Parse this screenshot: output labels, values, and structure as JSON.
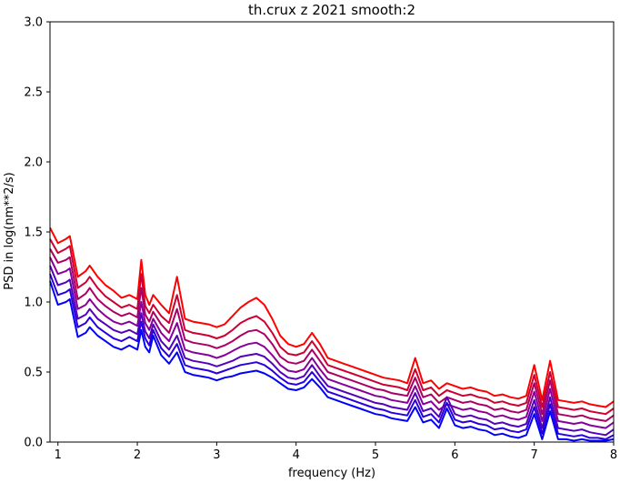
{
  "chart_data": {
    "type": "line",
    "title": "th.crux z 2021 smooth:2",
    "xlabel": "frequency (Hz)",
    "ylabel": "PSD in log(nm**2/s)",
    "xlim": [
      0.9,
      8.0
    ],
    "ylim": [
      0.0,
      3.0
    ],
    "xticks": [
      1,
      2,
      3,
      4,
      5,
      6,
      7,
      8
    ],
    "xtick_labels": [
      "1",
      "2",
      "3",
      "4",
      "5",
      "6",
      "7",
      "8"
    ],
    "yticks": [
      0.0,
      0.5,
      1.0,
      1.5,
      2.0,
      2.5,
      3.0
    ],
    "ytick_labels": [
      "0.0",
      "0.5",
      "1.0",
      "1.5",
      "2.0",
      "2.5",
      "3.0"
    ],
    "grid": false,
    "legend": "none",
    "series": [
      {
        "color": "#ff0000",
        "x": [
          0.9,
          1.0,
          1.1,
          1.15,
          1.25,
          1.35,
          1.4,
          1.5,
          1.6,
          1.7,
          1.8,
          1.9,
          2.0,
          2.05,
          2.1,
          2.15,
          2.2,
          2.3,
          2.4,
          2.5,
          2.6,
          2.7,
          2.8,
          2.9,
          3.0,
          3.1,
          3.2,
          3.3,
          3.4,
          3.5,
          3.6,
          3.7,
          3.8,
          3.9,
          4.0,
          4.1,
          4.2,
          4.3,
          4.4,
          4.5,
          4.6,
          4.7,
          4.8,
          4.9,
          5.0,
          5.1,
          5.2,
          5.3,
          5.4,
          5.5,
          5.6,
          5.7,
          5.8,
          5.9,
          6.0,
          6.1,
          6.2,
          6.3,
          6.4,
          6.5,
          6.6,
          6.7,
          6.8,
          6.9,
          7.0,
          7.1,
          7.2,
          7.3,
          7.4,
          7.5,
          7.6,
          7.7,
          7.8,
          7.9,
          8.0
        ],
        "y": [
          1.53,
          1.42,
          1.45,
          1.47,
          1.18,
          1.22,
          1.26,
          1.18,
          1.12,
          1.08,
          1.03,
          1.05,
          1.02,
          1.3,
          1.05,
          0.98,
          1.05,
          0.98,
          0.92,
          1.18,
          0.88,
          0.86,
          0.85,
          0.84,
          0.82,
          0.84,
          0.9,
          0.96,
          1.0,
          1.03,
          0.98,
          0.88,
          0.76,
          0.7,
          0.68,
          0.7,
          0.78,
          0.7,
          0.6,
          0.58,
          0.56,
          0.54,
          0.52,
          0.5,
          0.48,
          0.46,
          0.45,
          0.44,
          0.42,
          0.6,
          0.42,
          0.44,
          0.38,
          0.42,
          0.4,
          0.38,
          0.39,
          0.37,
          0.36,
          0.33,
          0.34,
          0.32,
          0.31,
          0.33,
          0.55,
          0.3,
          0.58,
          0.3,
          0.29,
          0.28,
          0.29,
          0.27,
          0.26,
          0.25,
          0.29
        ]
      },
      {
        "color": "#cc0033",
        "x": [
          0.9,
          1.0,
          1.1,
          1.15,
          1.25,
          1.35,
          1.4,
          1.5,
          1.6,
          1.7,
          1.8,
          1.9,
          2.0,
          2.05,
          2.1,
          2.15,
          2.2,
          2.3,
          2.4,
          2.5,
          2.6,
          2.7,
          2.8,
          2.9,
          3.0,
          3.1,
          3.2,
          3.3,
          3.4,
          3.5,
          3.6,
          3.7,
          3.8,
          3.9,
          4.0,
          4.1,
          4.2,
          4.3,
          4.4,
          4.5,
          4.6,
          4.7,
          4.8,
          4.9,
          5.0,
          5.1,
          5.2,
          5.3,
          5.4,
          5.5,
          5.6,
          5.7,
          5.8,
          5.9,
          6.0,
          6.1,
          6.2,
          6.3,
          6.4,
          6.5,
          6.6,
          6.7,
          6.8,
          6.9,
          7.0,
          7.1,
          7.2,
          7.3,
          7.4,
          7.5,
          7.6,
          7.7,
          7.8,
          7.9,
          8.0
        ],
        "y": [
          1.45,
          1.35,
          1.38,
          1.4,
          1.1,
          1.14,
          1.18,
          1.1,
          1.04,
          1.0,
          0.96,
          0.98,
          0.95,
          1.2,
          0.97,
          0.92,
          0.98,
          0.9,
          0.85,
          1.05,
          0.8,
          0.78,
          0.77,
          0.76,
          0.74,
          0.76,
          0.8,
          0.85,
          0.88,
          0.9,
          0.86,
          0.78,
          0.68,
          0.63,
          0.62,
          0.64,
          0.72,
          0.64,
          0.55,
          0.53,
          0.51,
          0.49,
          0.47,
          0.45,
          0.43,
          0.41,
          0.4,
          0.39,
          0.37,
          0.52,
          0.37,
          0.39,
          0.33,
          0.37,
          0.35,
          0.33,
          0.34,
          0.32,
          0.31,
          0.28,
          0.29,
          0.27,
          0.26,
          0.28,
          0.48,
          0.25,
          0.5,
          0.25,
          0.24,
          0.23,
          0.24,
          0.22,
          0.21,
          0.2,
          0.24
        ]
      },
      {
        "color": "#aa0066",
        "x": [
          0.9,
          1.0,
          1.1,
          1.15,
          1.25,
          1.35,
          1.4,
          1.5,
          1.6,
          1.7,
          1.8,
          1.9,
          2.0,
          2.05,
          2.1,
          2.15,
          2.2,
          2.3,
          2.4,
          2.5,
          2.6,
          2.7,
          2.8,
          2.9,
          3.0,
          3.1,
          3.2,
          3.3,
          3.4,
          3.5,
          3.6,
          3.7,
          3.8,
          3.9,
          4.0,
          4.1,
          4.2,
          4.3,
          4.4,
          4.5,
          4.6,
          4.7,
          4.8,
          4.9,
          5.0,
          5.1,
          5.2,
          5.3,
          5.4,
          5.5,
          5.6,
          5.7,
          5.8,
          5.9,
          6.0,
          6.1,
          6.2,
          6.3,
          6.4,
          6.5,
          6.6,
          6.7,
          6.8,
          6.9,
          7.0,
          7.1,
          7.2,
          7.3,
          7.4,
          7.5,
          7.6,
          7.7,
          7.8,
          7.9,
          8.0
        ],
        "y": [
          1.38,
          1.28,
          1.3,
          1.32,
          1.02,
          1.06,
          1.1,
          1.02,
          0.97,
          0.93,
          0.9,
          0.92,
          0.89,
          1.1,
          0.91,
          0.86,
          0.93,
          0.84,
          0.78,
          0.95,
          0.73,
          0.71,
          0.7,
          0.69,
          0.67,
          0.69,
          0.72,
          0.76,
          0.79,
          0.8,
          0.77,
          0.7,
          0.61,
          0.57,
          0.56,
          0.58,
          0.66,
          0.58,
          0.5,
          0.48,
          0.46,
          0.44,
          0.42,
          0.4,
          0.38,
          0.37,
          0.35,
          0.34,
          0.33,
          0.46,
          0.32,
          0.34,
          0.28,
          0.32,
          0.3,
          0.28,
          0.29,
          0.27,
          0.26,
          0.23,
          0.24,
          0.22,
          0.21,
          0.23,
          0.42,
          0.2,
          0.44,
          0.2,
          0.19,
          0.18,
          0.19,
          0.17,
          0.16,
          0.15,
          0.19
        ]
      },
      {
        "color": "#880099",
        "x": [
          0.9,
          1.0,
          1.1,
          1.15,
          1.25,
          1.35,
          1.4,
          1.5,
          1.6,
          1.7,
          1.8,
          1.9,
          2.0,
          2.05,
          2.1,
          2.15,
          2.2,
          2.3,
          2.4,
          2.5,
          2.6,
          2.7,
          2.8,
          2.9,
          3.0,
          3.1,
          3.2,
          3.3,
          3.4,
          3.5,
          3.6,
          3.7,
          3.8,
          3.9,
          4.0,
          4.1,
          4.2,
          4.3,
          4.4,
          4.5,
          4.6,
          4.7,
          4.8,
          4.9,
          5.0,
          5.1,
          5.2,
          5.3,
          5.4,
          5.5,
          5.6,
          5.7,
          5.8,
          5.9,
          6.0,
          6.1,
          6.2,
          6.3,
          6.4,
          6.5,
          6.6,
          6.7,
          6.8,
          6.9,
          7.0,
          7.1,
          7.2,
          7.3,
          7.4,
          7.5,
          7.6,
          7.7,
          7.8,
          7.9,
          8.0
        ],
        "y": [
          1.32,
          1.2,
          1.22,
          1.24,
          0.95,
          0.98,
          1.02,
          0.95,
          0.9,
          0.86,
          0.84,
          0.86,
          0.83,
          1.0,
          0.85,
          0.8,
          0.88,
          0.78,
          0.72,
          0.85,
          0.66,
          0.64,
          0.63,
          0.62,
          0.6,
          0.62,
          0.65,
          0.68,
          0.7,
          0.71,
          0.68,
          0.62,
          0.55,
          0.51,
          0.5,
          0.52,
          0.6,
          0.52,
          0.45,
          0.43,
          0.41,
          0.39,
          0.37,
          0.35,
          0.33,
          0.32,
          0.3,
          0.29,
          0.28,
          0.4,
          0.27,
          0.29,
          0.23,
          0.27,
          0.25,
          0.23,
          0.24,
          0.22,
          0.21,
          0.18,
          0.19,
          0.17,
          0.16,
          0.18,
          0.36,
          0.15,
          0.38,
          0.15,
          0.14,
          0.13,
          0.14,
          0.12,
          0.11,
          0.1,
          0.14
        ]
      },
      {
        "color": "#5500bb",
        "x": [
          0.9,
          1.0,
          1.1,
          1.15,
          1.25,
          1.35,
          1.4,
          1.5,
          1.6,
          1.7,
          1.8,
          1.9,
          2.0,
          2.05,
          2.1,
          2.15,
          2.2,
          2.3,
          2.4,
          2.5,
          2.6,
          2.7,
          2.8,
          2.9,
          3.0,
          3.1,
          3.2,
          3.3,
          3.4,
          3.5,
          3.6,
          3.7,
          3.8,
          3.9,
          4.0,
          4.1,
          4.2,
          4.3,
          4.4,
          4.5,
          4.6,
          4.7,
          4.8,
          4.9,
          5.0,
          5.1,
          5.2,
          5.3,
          5.4,
          5.5,
          5.6,
          5.7,
          5.8,
          5.9,
          6.0,
          6.1,
          6.2,
          6.3,
          6.4,
          6.5,
          6.6,
          6.7,
          6.8,
          6.9,
          7.0,
          7.1,
          7.2,
          7.3,
          7.4,
          7.5,
          7.6,
          7.7,
          7.8,
          7.9,
          8.0
        ],
        "y": [
          1.26,
          1.12,
          1.14,
          1.16,
          0.88,
          0.91,
          0.95,
          0.88,
          0.84,
          0.8,
          0.78,
          0.8,
          0.77,
          0.92,
          0.79,
          0.74,
          0.84,
          0.72,
          0.66,
          0.76,
          0.6,
          0.58,
          0.57,
          0.56,
          0.54,
          0.56,
          0.58,
          0.61,
          0.62,
          0.63,
          0.61,
          0.56,
          0.5,
          0.46,
          0.45,
          0.47,
          0.55,
          0.47,
          0.4,
          0.38,
          0.36,
          0.34,
          0.32,
          0.3,
          0.28,
          0.27,
          0.25,
          0.24,
          0.23,
          0.35,
          0.22,
          0.24,
          0.18,
          0.32,
          0.2,
          0.18,
          0.19,
          0.17,
          0.16,
          0.13,
          0.14,
          0.12,
          0.11,
          0.13,
          0.3,
          0.1,
          0.32,
          0.1,
          0.09,
          0.08,
          0.09,
          0.07,
          0.06,
          0.05,
          0.09
        ]
      },
      {
        "color": "#2a00dd",
        "x": [
          0.9,
          1.0,
          1.1,
          1.15,
          1.25,
          1.35,
          1.4,
          1.5,
          1.6,
          1.7,
          1.8,
          1.9,
          2.0,
          2.05,
          2.1,
          2.15,
          2.2,
          2.3,
          2.4,
          2.5,
          2.6,
          2.7,
          2.8,
          2.9,
          3.0,
          3.1,
          3.2,
          3.3,
          3.4,
          3.5,
          3.6,
          3.7,
          3.8,
          3.9,
          4.0,
          4.1,
          4.2,
          4.3,
          4.4,
          4.5,
          4.6,
          4.7,
          4.8,
          4.9,
          5.0,
          5.1,
          5.2,
          5.3,
          5.4,
          5.5,
          5.6,
          5.7,
          5.8,
          5.9,
          6.0,
          6.1,
          6.2,
          6.3,
          6.4,
          6.5,
          6.6,
          6.7,
          6.8,
          6.9,
          7.0,
          7.1,
          7.2,
          7.3,
          7.4,
          7.5,
          7.6,
          7.7,
          7.8,
          7.9,
          8.0
        ],
        "y": [
          1.2,
          1.05,
          1.07,
          1.09,
          0.82,
          0.85,
          0.89,
          0.82,
          0.78,
          0.74,
          0.72,
          0.75,
          0.72,
          0.86,
          0.74,
          0.69,
          0.8,
          0.67,
          0.61,
          0.7,
          0.55,
          0.53,
          0.52,
          0.51,
          0.49,
          0.51,
          0.53,
          0.55,
          0.56,
          0.57,
          0.55,
          0.51,
          0.46,
          0.42,
          0.41,
          0.43,
          0.5,
          0.43,
          0.36,
          0.34,
          0.32,
          0.3,
          0.28,
          0.26,
          0.24,
          0.23,
          0.21,
          0.2,
          0.19,
          0.3,
          0.18,
          0.2,
          0.14,
          0.28,
          0.16,
          0.14,
          0.15,
          0.13,
          0.12,
          0.09,
          0.1,
          0.08,
          0.07,
          0.09,
          0.25,
          0.06,
          0.27,
          0.06,
          0.05,
          0.04,
          0.05,
          0.03,
          0.03,
          0.02,
          0.05
        ]
      },
      {
        "color": "#0000ff",
        "x": [
          0.9,
          1.0,
          1.1,
          1.15,
          1.25,
          1.35,
          1.4,
          1.5,
          1.6,
          1.7,
          1.8,
          1.9,
          2.0,
          2.05,
          2.1,
          2.15,
          2.2,
          2.3,
          2.4,
          2.5,
          2.6,
          2.7,
          2.8,
          2.9,
          3.0,
          3.1,
          3.2,
          3.3,
          3.4,
          3.5,
          3.6,
          3.7,
          3.8,
          3.9,
          4.0,
          4.1,
          4.2,
          4.3,
          4.4,
          4.5,
          4.6,
          4.7,
          4.8,
          4.9,
          5.0,
          5.1,
          5.2,
          5.3,
          5.4,
          5.5,
          5.6,
          5.7,
          5.8,
          5.9,
          6.0,
          6.1,
          6.2,
          6.3,
          6.4,
          6.5,
          6.6,
          6.7,
          6.8,
          6.9,
          7.0,
          7.1,
          7.2,
          7.3,
          7.4,
          7.5,
          7.6,
          7.7,
          7.8,
          7.9,
          8.0
        ],
        "y": [
          1.15,
          0.98,
          1.0,
          1.02,
          0.75,
          0.78,
          0.82,
          0.76,
          0.72,
          0.68,
          0.66,
          0.69,
          0.66,
          0.8,
          0.68,
          0.64,
          0.76,
          0.62,
          0.56,
          0.64,
          0.5,
          0.48,
          0.47,
          0.46,
          0.44,
          0.46,
          0.47,
          0.49,
          0.5,
          0.51,
          0.49,
          0.46,
          0.42,
          0.38,
          0.37,
          0.39,
          0.45,
          0.39,
          0.32,
          0.3,
          0.28,
          0.26,
          0.24,
          0.22,
          0.2,
          0.19,
          0.17,
          0.16,
          0.15,
          0.25,
          0.14,
          0.16,
          0.1,
          0.24,
          0.12,
          0.1,
          0.11,
          0.09,
          0.08,
          0.05,
          0.06,
          0.04,
          0.03,
          0.05,
          0.2,
          0.02,
          0.22,
          0.02,
          0.02,
          0.01,
          0.02,
          0.01,
          0.01,
          0.01,
          0.02
        ]
      }
    ]
  }
}
